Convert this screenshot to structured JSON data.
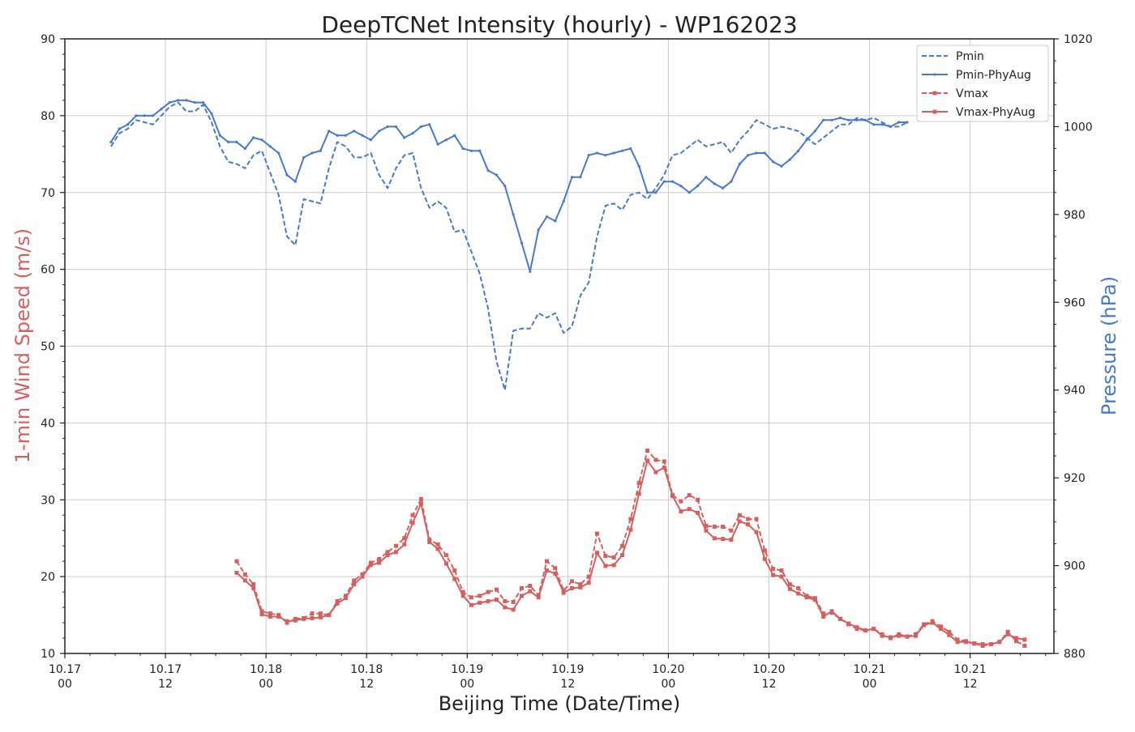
{
  "chart_data": {
    "type": "line",
    "title": "DeepTCNet Intensity (hourly) - WP162023",
    "xlabel": "Beijing Time (Date/Time)",
    "ylabel_left": "1-min Wind Speed (m/s)",
    "ylabel_right": "Pressure (hPa)",
    "x_unit": "hours since 10.17 00 (Beijing Time)",
    "xlim": [
      0,
      118
    ],
    "ylim_left": [
      10,
      90
    ],
    "ylim_right": [
      880,
      1020
    ],
    "x_ticks": [
      {
        "date": "10.17",
        "hour": "00",
        "x": 0
      },
      {
        "date": "10.17",
        "hour": "12",
        "x": 12
      },
      {
        "date": "10.18",
        "hour": "00",
        "x": 24
      },
      {
        "date": "10.18",
        "hour": "12",
        "x": 36
      },
      {
        "date": "10.19",
        "hour": "00",
        "x": 48
      },
      {
        "date": "10.19",
        "hour": "12",
        "x": 60
      },
      {
        "date": "10.20",
        "hour": "00",
        "x": 72
      },
      {
        "date": "10.20",
        "hour": "12",
        "x": 84
      },
      {
        "date": "10.21",
        "hour": "00",
        "x": 96
      },
      {
        "date": "10.21",
        "hour": "12",
        "x": 108
      }
    ],
    "y_ticks_left": [
      10,
      20,
      30,
      40,
      50,
      60,
      70,
      80,
      90
    ],
    "y_ticks_right": [
      880,
      900,
      920,
      940,
      960,
      980,
      1000,
      1020
    ],
    "grid": true,
    "legend_position": "top-right",
    "colors": {
      "pressure": "#4878cf",
      "wind": "#d65f5f",
      "grid": "#cccccc",
      "axis": "#222222"
    },
    "series": [
      {
        "name": "Pmin",
        "axis": "right",
        "style": "dashed",
        "marker": "none",
        "x_start": 5.5,
        "values": [
          995.5,
          998.5,
          999.5,
          1001.5,
          1001.0,
          1000.5,
          1002.5,
          1004.5,
          1005.5,
          1003.5,
          1003.5,
          1005.0,
          1001.0,
          995.5,
          992.0,
          991.5,
          990.5,
          993.5,
          994.5,
          989.5,
          984.5,
          975.0,
          973.0,
          983.5,
          983.0,
          982.5,
          990.5,
          996.5,
          995.5,
          993.0,
          993.0,
          994.0,
          989.0,
          986.0,
          990.5,
          993.5,
          994.0,
          986.0,
          981.5,
          983.0,
          981.5,
          976.0,
          976.5,
          971.5,
          966.5,
          958.5,
          946.5,
          940.0,
          953.5,
          954.0,
          954.0,
          957.5,
          956.5,
          957.5,
          953.0,
          954.5,
          961.5,
          964.5,
          975.0,
          982.0,
          982.5,
          981.0,
          984.5,
          985.0,
          983.5,
          986.0,
          989.0,
          993.5,
          994.0,
          995.5,
          997.0,
          995.5,
          996.0,
          996.5,
          994.0,
          997.0,
          999.0,
          1001.5,
          1000.5,
          999.5,
          1000.0,
          999.5,
          999.0,
          997.5,
          996.0,
          997.5,
          999.0,
          1000.5,
          1000.5,
          1002.0,
          1001.5,
          1002.0,
          1001.0,
          1000.0,
          1000.0,
          1001.0
        ]
      },
      {
        "name": "Pmin-PhyAug",
        "axis": "right",
        "style": "solid",
        "marker": "dot",
        "x_start": 5.5,
        "values": [
          996.5,
          999.5,
          1000.5,
          1002.5,
          1002.5,
          1002.5,
          1004.0,
          1005.5,
          1006.0,
          1006.0,
          1005.5,
          1005.5,
          1003.0,
          998.0,
          996.5,
          996.5,
          995.0,
          997.5,
          997.0,
          995.5,
          994.0,
          989.0,
          987.5,
          993.0,
          994.0,
          994.5,
          999.0,
          998.0,
          998.0,
          999.0,
          998.0,
          997.0,
          999.0,
          1000.0,
          1000.0,
          997.5,
          998.5,
          1000.0,
          1000.5,
          996.0,
          997.0,
          998.0,
          995.0,
          994.5,
          994.5,
          990.0,
          989.0,
          986.5,
          980.0,
          973.5,
          967.0,
          976.5,
          979.5,
          978.5,
          983.0,
          988.5,
          988.5,
          993.5,
          994.0,
          993.5,
          994.0,
          994.5,
          995.0,
          991.0,
          985.0,
          985.0,
          987.5,
          987.5,
          986.5,
          985.0,
          986.5,
          988.5,
          987.0,
          986.0,
          987.5,
          991.5,
          993.5,
          994.0,
          994.0,
          992.0,
          991.0,
          992.5,
          994.5,
          997.0,
          999.0,
          1001.5,
          1001.5,
          1002.0,
          1001.5,
          1001.5,
          1001.5,
          1000.5,
          1000.5,
          1000.0,
          1001.0,
          1001.0
        ]
      },
      {
        "name": "Vmax",
        "axis": "left",
        "style": "dashed",
        "marker": "square",
        "x_start": 20.5,
        "values": [
          22.0,
          20.3,
          19.0,
          15.5,
          15.2,
          15.0,
          14.0,
          14.5,
          14.6,
          15.2,
          15.2,
          15.0,
          16.8,
          17.5,
          19.5,
          20.3,
          21.8,
          22.3,
          23.2,
          24.0,
          25.0,
          28.0,
          30.1,
          24.8,
          24.2,
          22.8,
          20.8,
          18.0,
          17.3,
          17.5,
          18.0,
          18.3,
          16.8,
          16.7,
          18.5,
          18.8,
          17.6,
          22.0,
          21.1,
          18.2,
          19.4,
          19.0,
          20.0,
          25.6,
          22.7,
          22.5,
          24.0,
          27.5,
          32.2,
          36.4,
          35.2,
          35.0,
          30.6,
          29.8,
          30.6,
          30.0,
          26.6,
          26.5,
          26.5,
          26.0,
          28.0,
          27.5,
          27.5,
          23.4,
          21.0,
          20.8,
          19.0,
          18.5,
          17.5,
          17.2,
          15.2,
          15.3,
          14.5,
          13.8,
          13.2,
          13.0,
          13.2,
          12.5,
          12.0,
          12.5,
          12.2,
          12.5,
          13.8,
          14.2,
          13.5,
          12.8,
          11.8,
          11.6,
          11.3,
          11.0,
          11.2,
          11.5,
          12.8,
          11.6,
          11.0
        ]
      },
      {
        "name": "Vmax-PhyAug",
        "axis": "left",
        "style": "solid",
        "marker": "square",
        "x_start": 20.5,
        "values": [
          20.5,
          19.5,
          18.5,
          15.1,
          14.8,
          14.8,
          14.2,
          14.3,
          14.5,
          14.6,
          14.7,
          15.0,
          16.5,
          17.2,
          19.0,
          20.0,
          21.5,
          21.8,
          22.8,
          23.2,
          24.2,
          27.0,
          29.5,
          24.5,
          23.6,
          21.7,
          19.7,
          17.5,
          16.3,
          16.6,
          16.8,
          17.0,
          16.0,
          15.7,
          17.5,
          18.1,
          17.3,
          20.8,
          20.4,
          17.9,
          18.5,
          18.6,
          19.2,
          23.1,
          21.4,
          21.5,
          22.8,
          26.1,
          30.8,
          35.1,
          33.6,
          34.2,
          30.5,
          28.5,
          28.8,
          28.3,
          26.0,
          25.0,
          24.9,
          24.8,
          27.2,
          26.8,
          25.8,
          22.3,
          20.2,
          20.0,
          18.4,
          17.8,
          17.3,
          17.0,
          14.8,
          15.5,
          14.5,
          13.9,
          13.4,
          13.0,
          13.2,
          12.3,
          12.1,
          12.3,
          12.2,
          12.3,
          13.7,
          14.0,
          13.2,
          12.4,
          11.5,
          11.5,
          11.3,
          11.2,
          11.2,
          11.5,
          12.5,
          12.0,
          11.8
        ]
      }
    ]
  }
}
